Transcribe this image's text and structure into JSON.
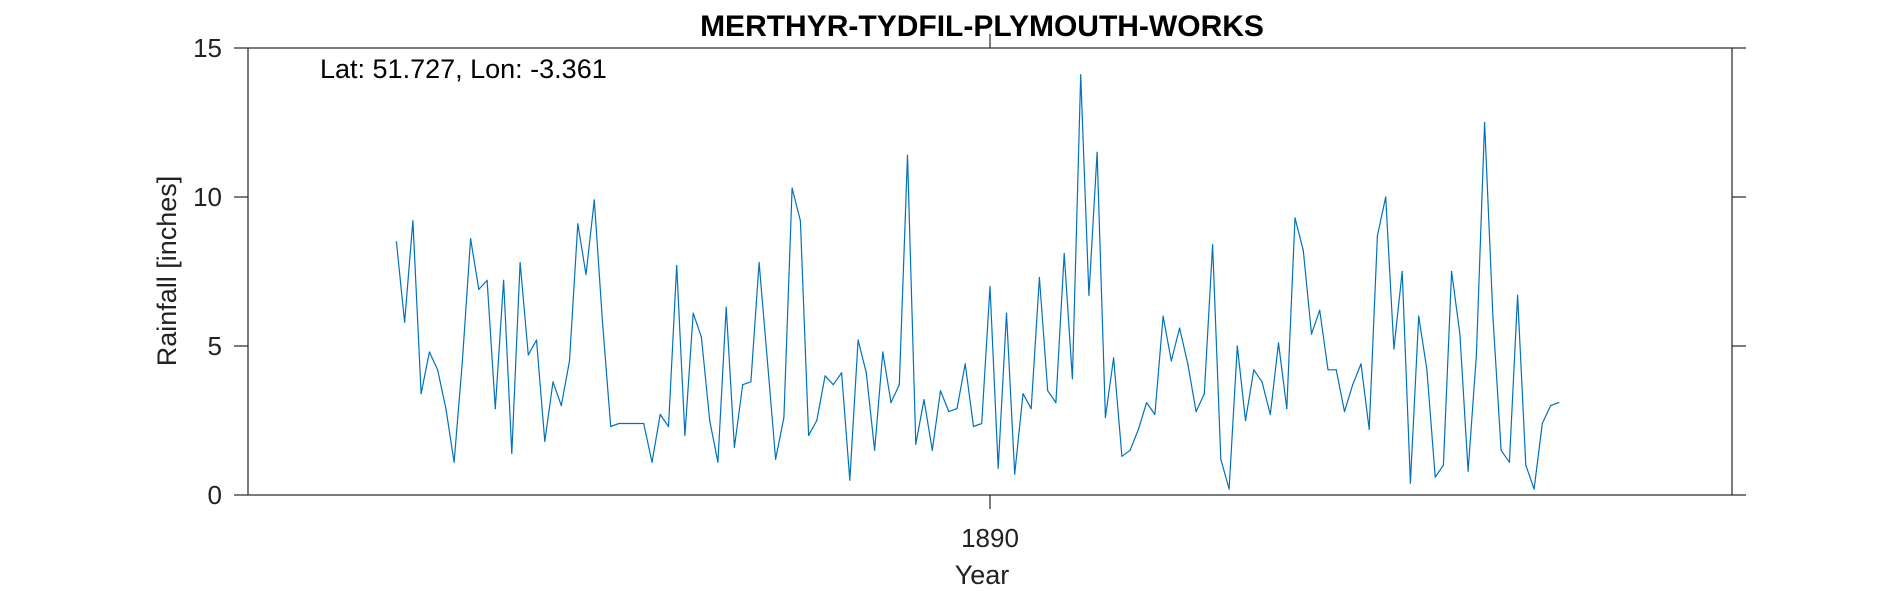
{
  "chart_data": {
    "type": "line",
    "title": "MERTHYR-TYDFIL-PLYMOUTH-WORKS",
    "xlabel": "Year",
    "ylabel": "Rainfall [inches]",
    "annotation": "Lat: 51.727, Lon: -3.361",
    "xlim": [
      1882.5,
      1897.5
    ],
    "ylim": [
      0,
      15
    ],
    "xticks": [
      1890
    ],
    "xtick_labels": [
      "1890"
    ],
    "yticks": [
      0,
      5,
      10,
      15
    ],
    "ytick_labels": [
      "0",
      "5",
      "10",
      "15"
    ],
    "grid": false,
    "line_color": "#0072BD",
    "series": [
      {
        "x_start": 1884.0,
        "x_step": 0.08333,
        "values": [
          8.5,
          5.8,
          9.2,
          3.4,
          4.8,
          4.2,
          2.9,
          1.1,
          4.5,
          8.6,
          6.9,
          7.2,
          2.9,
          7.2,
          1.4,
          7.8,
          4.7,
          5.2,
          1.8,
          3.8,
          3.0,
          4.5,
          9.1,
          7.4,
          9.9,
          5.8,
          2.3,
          2.4,
          2.4,
          2.4,
          2.4,
          1.1,
          2.7,
          2.3,
          7.7,
          2.0,
          6.1,
          5.3,
          2.5,
          1.1,
          6.3,
          1.6,
          3.7,
          3.8,
          7.8,
          4.5,
          1.2,
          2.6,
          10.3,
          9.2,
          2.0,
          2.5,
          4.0,
          3.7,
          4.1,
          0.5,
          5.2,
          4.1,
          1.5,
          4.8,
          3.1,
          3.7,
          11.4,
          1.7,
          3.2,
          1.5,
          3.5,
          2.8,
          2.9,
          4.4,
          2.3,
          2.4,
          7.0,
          0.9,
          6.1,
          0.7,
          3.4,
          2.9,
          7.3,
          3.5,
          3.1,
          8.1,
          3.9,
          14.1,
          6.7,
          11.5,
          2.6,
          4.6,
          1.3,
          1.5,
          2.2,
          3.1,
          2.7,
          6.0,
          4.5,
          5.6,
          4.4,
          2.8,
          3.4,
          8.4,
          1.2,
          0.2,
          5.0,
          2.5,
          4.2,
          3.8,
          2.7,
          5.1,
          2.9,
          9.3,
          8.2,
          5.4,
          6.2,
          4.2,
          4.2,
          2.8,
          3.7,
          4.4,
          2.2,
          8.7,
          10.0,
          4.9,
          7.5,
          0.4,
          6.0,
          4.2,
          0.6,
          1.0,
          7.5,
          5.4,
          0.8,
          4.7,
          12.5,
          6.0,
          1.5,
          1.1,
          6.7,
          1.0,
          0.2,
          2.4,
          3.0,
          3.1
        ]
      }
    ]
  }
}
